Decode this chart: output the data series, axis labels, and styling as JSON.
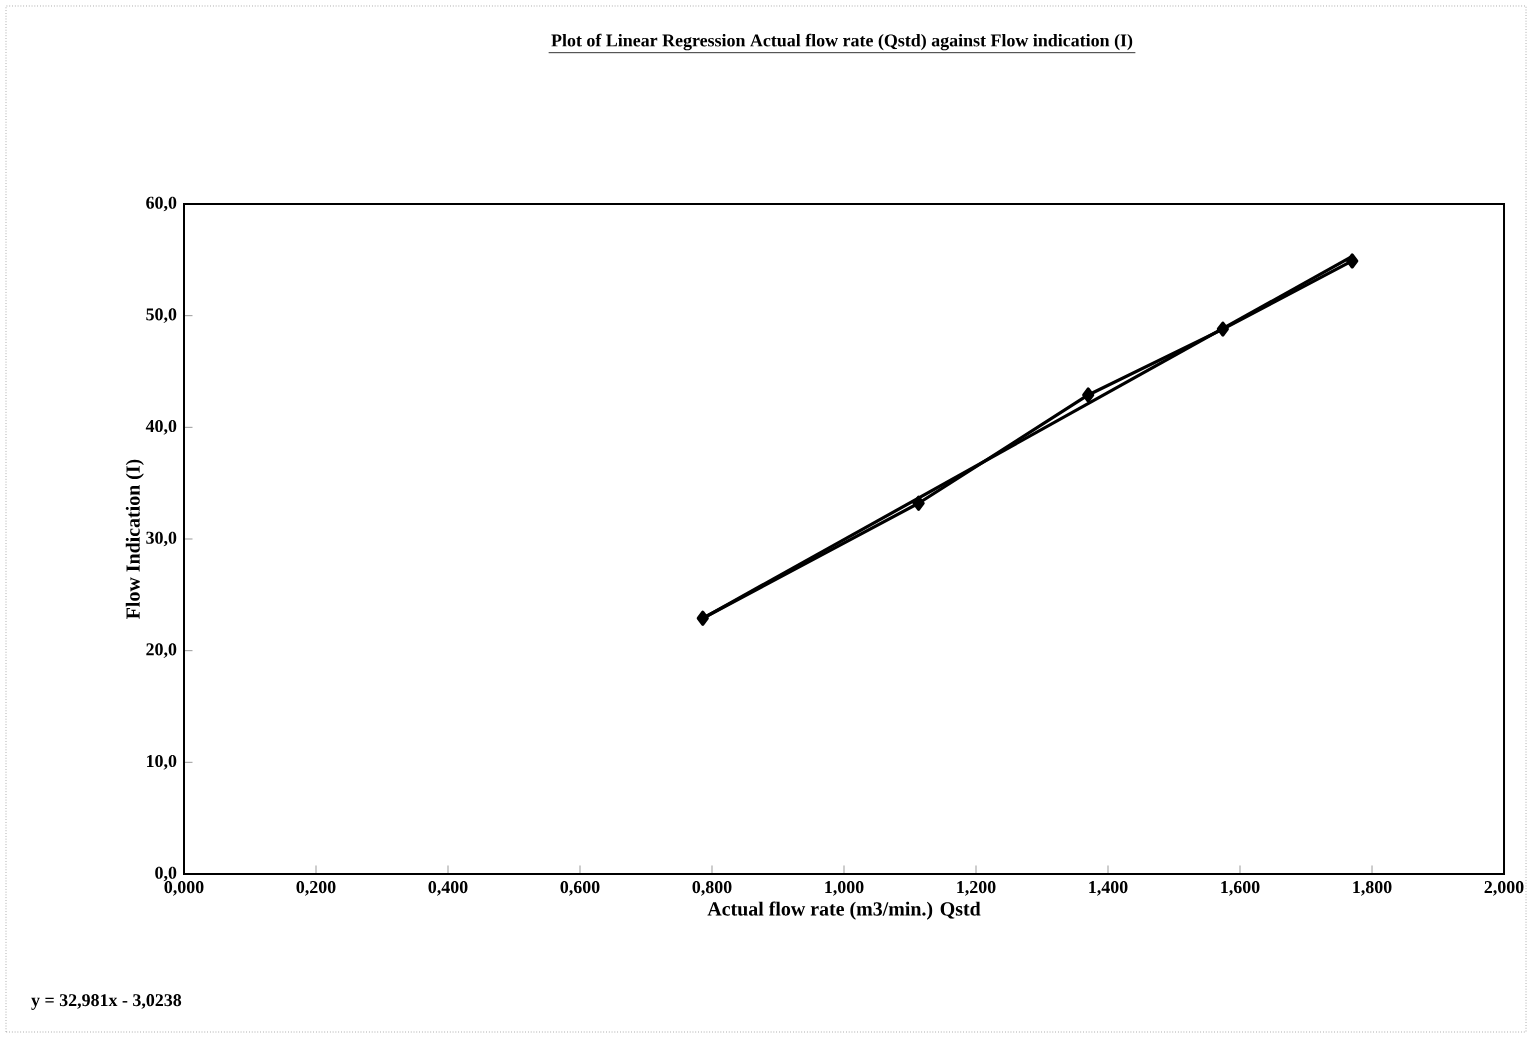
{
  "chart_data": {
    "type": "line",
    "title": "Plot of Linear Regression Actual flow rate (Qstd) against Flow indication (I)",
    "xlabel": "Actual flow rate (m3/min.) Qstd",
    "ylabel": "Flow Indication (I)",
    "annotations": [
      "y = 32,981x - 3,0238"
    ],
    "series": [
      {
        "color": "#000000",
        "marker": "diamond",
        "line_style": "solid",
        "x": [
          0.786,
          1.113,
          1.37,
          1.574,
          1.77
        ],
        "values": [
          22.9,
          33.2,
          42.9,
          48.8,
          54.9
        ]
      },
      {
        "color": "#000000",
        "marker": "none",
        "line_style": "solid",
        "x": [
          0.786,
          1.77
        ],
        "values": [
          22.9,
          55.3
        ]
      }
    ],
    "xlim": [
      0,
      2
    ],
    "ylim": [
      0,
      60
    ],
    "xticks": [
      {
        "value": 0,
        "label": "0,000"
      },
      {
        "value": 0.2,
        "label": "0,200"
      },
      {
        "value": 0.4,
        "label": "0,400"
      },
      {
        "value": 0.6,
        "label": "0,600"
      },
      {
        "value": 0.8,
        "label": "0,800"
      },
      {
        "value": 1.0,
        "label": "1,000"
      },
      {
        "value": 1.2,
        "label": "1,200"
      },
      {
        "value": 1.4,
        "label": "1,400"
      },
      {
        "value": 1.6,
        "label": "1,600"
      },
      {
        "value": 1.8,
        "label": "1,800"
      },
      {
        "value": 2.0,
        "label": "2,000"
      }
    ],
    "yticks": [
      {
        "value": 0,
        "label": "0,0"
      },
      {
        "value": 10,
        "label": "10,0"
      },
      {
        "value": 20,
        "label": "20,0"
      },
      {
        "value": 30,
        "label": "30,0"
      },
      {
        "value": 40,
        "label": "40,0"
      },
      {
        "value": 50,
        "label": "50,0"
      },
      {
        "value": 60,
        "label": "60,0"
      }
    ],
    "grid": false
  }
}
